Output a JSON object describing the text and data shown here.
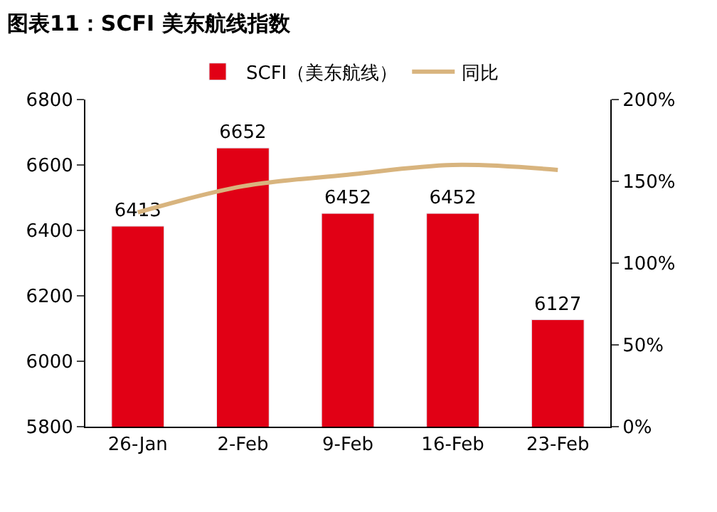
{
  "chart_data": {
    "type": "bar",
    "title": "图表11：SCFI 美东航线指数",
    "categories": [
      "26-Jan",
      "2-Feb",
      "9-Feb",
      "16-Feb",
      "23-Feb"
    ],
    "series": [
      {
        "name": "SCFI（美东航线）",
        "color": "#e10015",
        "values": [
          6413,
          6652,
          6452,
          6452,
          6127
        ],
        "value_labels": [
          "6413",
          "6652",
          "6452",
          "6452",
          "6127"
        ]
      },
      {
        "name": "同比",
        "type": "line",
        "axis": "y2",
        "color": "#d8b47e",
        "values": [
          131,
          147,
          154,
          160,
          157
        ]
      }
    ],
    "ylim": [
      5800,
      6800
    ],
    "yticks": [
      5800,
      6000,
      6200,
      6400,
      6600,
      6800
    ],
    "y2lim": [
      0,
      200
    ],
    "y2ticks": [
      {
        "value": 0,
        "label": "0%"
      },
      {
        "value": 50,
        "label": "50%"
      },
      {
        "value": 100,
        "label": "100%"
      },
      {
        "value": 150,
        "label": "150%"
      },
      {
        "value": 200,
        "label": "200%"
      }
    ],
    "legend": "top",
    "marker": "none"
  }
}
